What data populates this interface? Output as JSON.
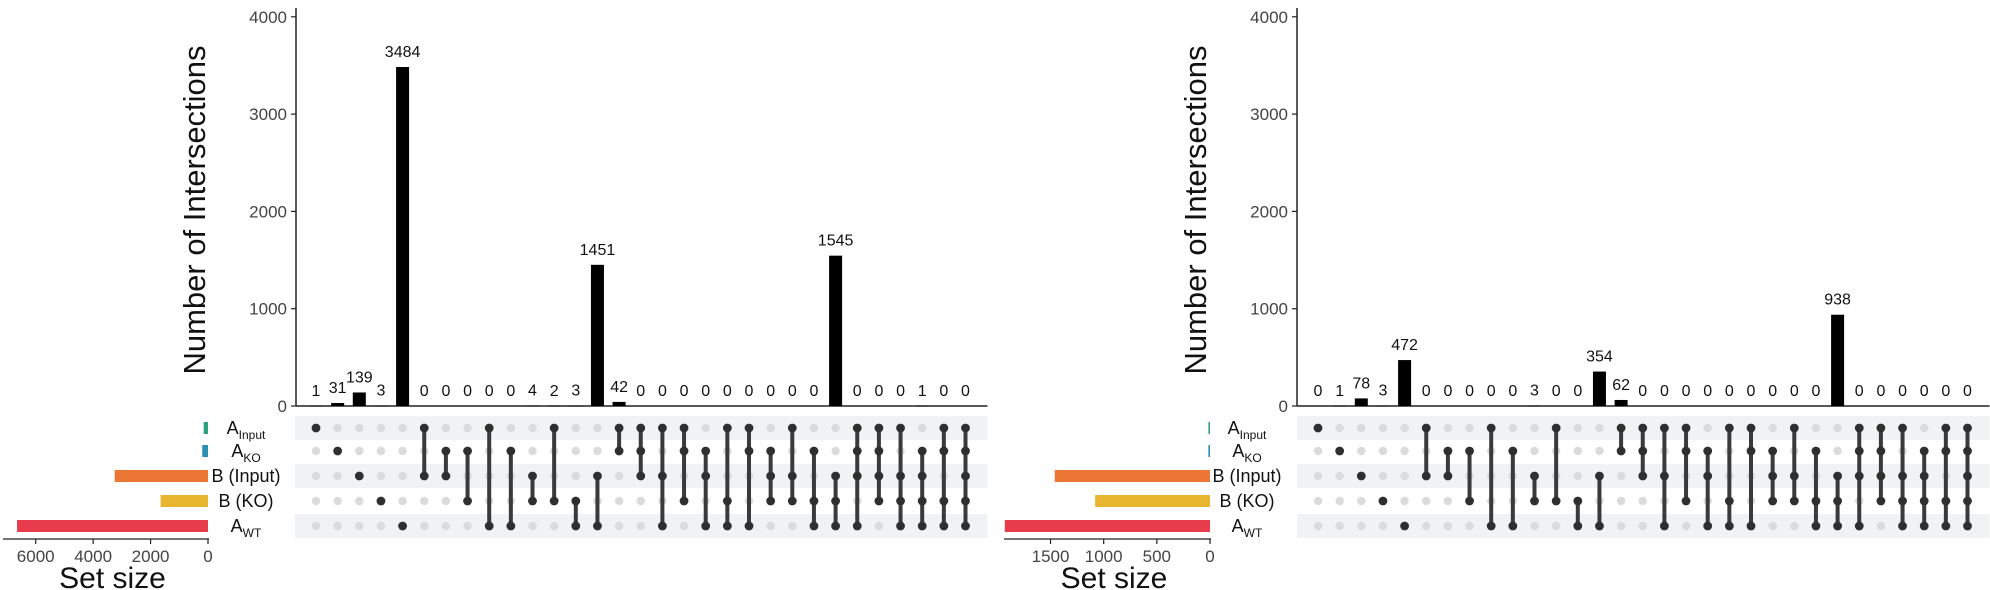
{
  "chart_data": [
    {
      "type": "bar",
      "ylabel": "Number of Intersections",
      "xlabel": "Set size",
      "ylim": [
        0,
        4200
      ],
      "yticks": [
        "0",
        "1000",
        "2000",
        "3000",
        "4000"
      ],
      "set_size_ticks": [
        "6000",
        "4000",
        "2000",
        "0"
      ],
      "set_size_max": 7000,
      "sets": [
        {
          "label": "A",
          "sub": "Input",
          "size": 150,
          "color": "#2E9E7E"
        },
        {
          "label": "A",
          "sub": "KO",
          "size": 200,
          "color": "#2A8FB0"
        },
        {
          "label": "B (Input)",
          "sub": "",
          "size": 3250,
          "color": "#EC7634"
        },
        {
          "label": "B (KO)",
          "sub": "",
          "size": 1650,
          "color": "#E8B52E"
        },
        {
          "label": "A",
          "sub": "WT",
          "size": 6650,
          "color": "#E63C4B"
        }
      ],
      "values": [
        1,
        31,
        139,
        3,
        3484,
        0,
        0,
        0,
        0,
        0,
        4,
        2,
        3,
        1451,
        42,
        0,
        0,
        0,
        0,
        0,
        0,
        0,
        0,
        0,
        1545,
        0,
        0,
        0,
        1,
        0,
        0
      ],
      "combos": [
        [
          0
        ],
        [
          1
        ],
        [
          2
        ],
        [
          3
        ],
        [
          4
        ],
        [
          0,
          2
        ],
        [
          1,
          2
        ],
        [
          1,
          3
        ],
        [
          0,
          4
        ],
        [
          1,
          4
        ],
        [
          2,
          3
        ],
        [
          0,
          3
        ],
        [
          3,
          4
        ],
        [
          2,
          4
        ],
        [
          0,
          1
        ],
        [
          0,
          1,
          2
        ],
        [
          0,
          2,
          4
        ],
        [
          0,
          1,
          3
        ],
        [
          1,
          2,
          4
        ],
        [
          0,
          3,
          4
        ],
        [
          0,
          1,
          4
        ],
        [
          1,
          2,
          3
        ],
        [
          0,
          2,
          3
        ],
        [
          1,
          3,
          4
        ],
        [
          2,
          3,
          4
        ],
        [
          0,
          1,
          2,
          4
        ],
        [
          0,
          1,
          2,
          3
        ],
        [
          0,
          2,
          3,
          4
        ],
        [
          1,
          2,
          3,
          4
        ],
        [
          0,
          1,
          3,
          4
        ],
        [
          0,
          1,
          2,
          3,
          4
        ]
      ]
    },
    {
      "type": "bar",
      "ylabel": "Number of Intersections",
      "xlabel": "Set size",
      "ylim": [
        0,
        4200
      ],
      "yticks": [
        "0",
        "1000",
        "2000",
        "3000",
        "4000"
      ],
      "set_size_ticks": [
        "1500",
        "1000",
        "500",
        "0"
      ],
      "set_size_max": 1900,
      "sets": [
        {
          "label": "A",
          "sub": "Input",
          "size": 5,
          "color": "#2E9E7E"
        },
        {
          "label": "A",
          "sub": "KO",
          "size": 5,
          "color": "#2A8FB0"
        },
        {
          "label": "B (Input)",
          "sub": "",
          "size": 1460,
          "color": "#EC7634"
        },
        {
          "label": "B (KO)",
          "sub": "",
          "size": 1080,
          "color": "#E8B52E"
        },
        {
          "label": "A",
          "sub": "WT",
          "size": 1930,
          "color": "#E63C4B"
        }
      ],
      "values": [
        0,
        1,
        78,
        3,
        472,
        0,
        0,
        0,
        0,
        0,
        3,
        0,
        0,
        354,
        62,
        0,
        0,
        0,
        0,
        0,
        0,
        0,
        0,
        0,
        938,
        0,
        0,
        0,
        0,
        0,
        0
      ],
      "combos": [
        [
          0
        ],
        [
          1
        ],
        [
          2
        ],
        [
          3
        ],
        [
          4
        ],
        [
          0,
          2
        ],
        [
          1,
          2
        ],
        [
          1,
          3
        ],
        [
          0,
          4
        ],
        [
          1,
          4
        ],
        [
          2,
          3
        ],
        [
          0,
          3
        ],
        [
          3,
          4
        ],
        [
          2,
          4
        ],
        [
          0,
          1
        ],
        [
          0,
          1,
          2
        ],
        [
          0,
          2,
          4
        ],
        [
          0,
          1,
          3
        ],
        [
          1,
          2,
          4
        ],
        [
          0,
          3,
          4
        ],
        [
          0,
          1,
          4
        ],
        [
          1,
          2,
          3
        ],
        [
          0,
          2,
          3
        ],
        [
          1,
          3,
          4
        ],
        [
          2,
          3,
          4
        ],
        [
          0,
          1,
          2,
          4
        ],
        [
          0,
          1,
          2,
          3
        ],
        [
          0,
          2,
          3,
          4
        ],
        [
          1,
          2,
          3,
          4
        ],
        [
          0,
          1,
          3,
          4
        ],
        [
          0,
          1,
          2,
          3,
          4
        ]
      ]
    }
  ]
}
